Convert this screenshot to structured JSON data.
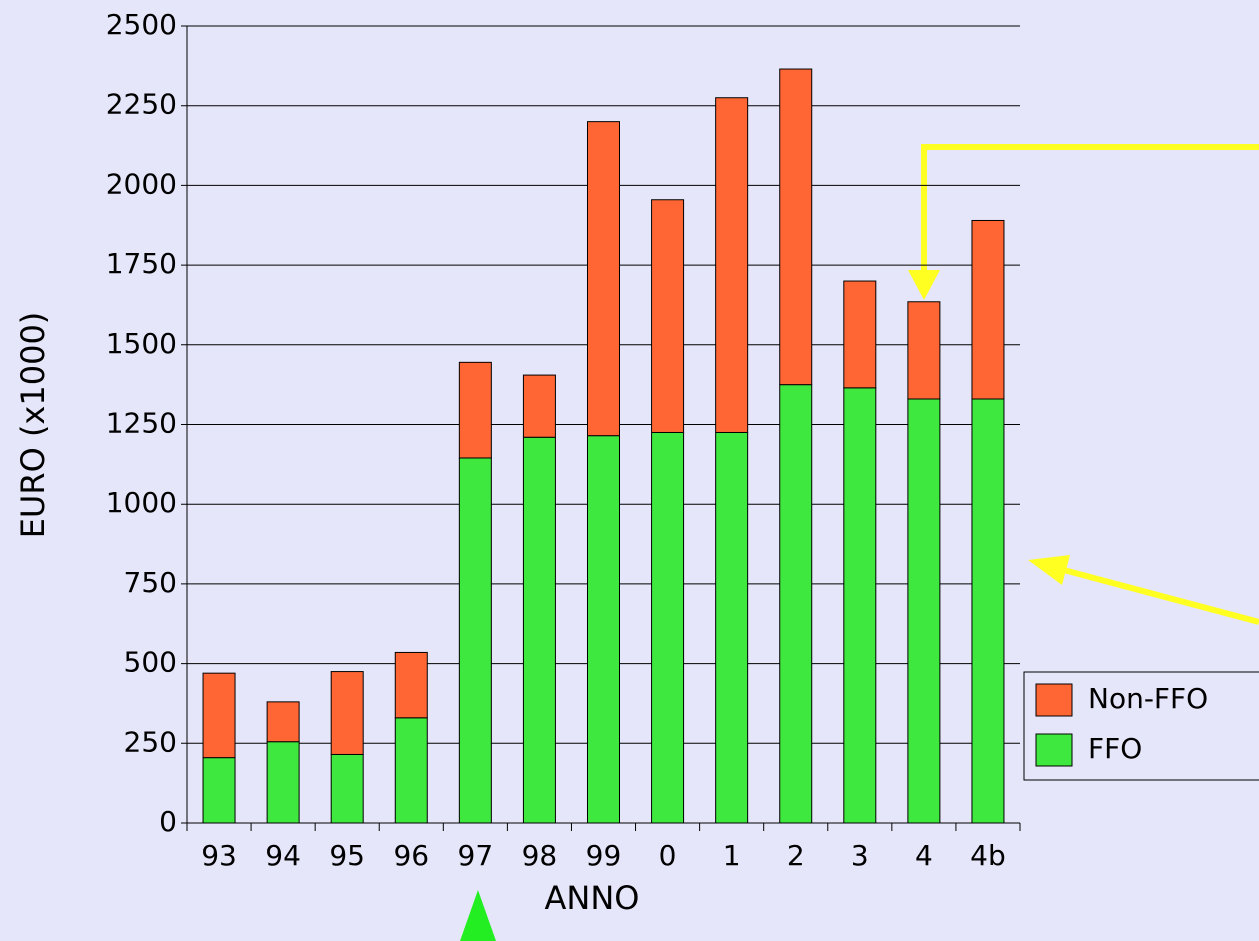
{
  "chart_data": {
    "type": "bar",
    "stacked": true,
    "x_label": "ANNO",
    "y_label": "EURO (x1000)",
    "categories": [
      "93",
      "94",
      "95",
      "96",
      "97",
      "98",
      "99",
      "0",
      "1",
      "2",
      "3",
      "4",
      "4b"
    ],
    "series": [
      {
        "name": "FFO",
        "color": "#3ee83e",
        "values": [
          205,
          255,
          215,
          330,
          1145,
          1210,
          1215,
          1225,
          1225,
          1375,
          1365,
          1330,
          1330
        ]
      },
      {
        "name": "Non-FFO",
        "color": "#ff6633",
        "values": [
          265,
          125,
          260,
          205,
          300,
          195,
          985,
          730,
          1050,
          990,
          335,
          305,
          560
        ]
      }
    ],
    "ylim": [
      0,
      2500
    ],
    "yticks": [
      0,
      250,
      500,
      750,
      1000,
      1250,
      1500,
      1750,
      2000,
      2250,
      2500
    ],
    "grid": true,
    "legend": "right"
  }
}
